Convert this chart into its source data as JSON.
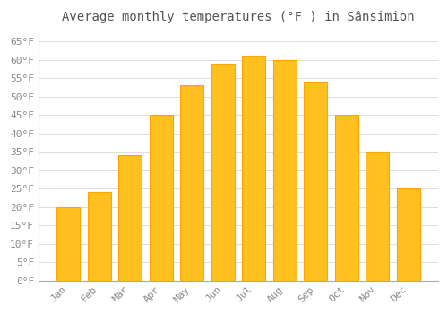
{
  "title": "Average monthly temperatures (°F ) in Sânsimion",
  "months": [
    "Jan",
    "Feb",
    "Mar",
    "Apr",
    "May",
    "Jun",
    "Jul",
    "Aug",
    "Sep",
    "Oct",
    "Nov",
    "Dec"
  ],
  "values": [
    20,
    24,
    34,
    45,
    53,
    59,
    61,
    60,
    54,
    45,
    35,
    25
  ],
  "bar_color": "#FFC020",
  "bar_edge_color": "#FFA500",
  "background_color": "#ffffff",
  "grid_color": "#dddddd",
  "text_color": "#888888",
  "ylim": [
    0,
    68
  ],
  "yticks": [
    0,
    5,
    10,
    15,
    20,
    25,
    30,
    35,
    40,
    45,
    50,
    55,
    60,
    65
  ],
  "title_fontsize": 10,
  "tick_fontsize": 8
}
